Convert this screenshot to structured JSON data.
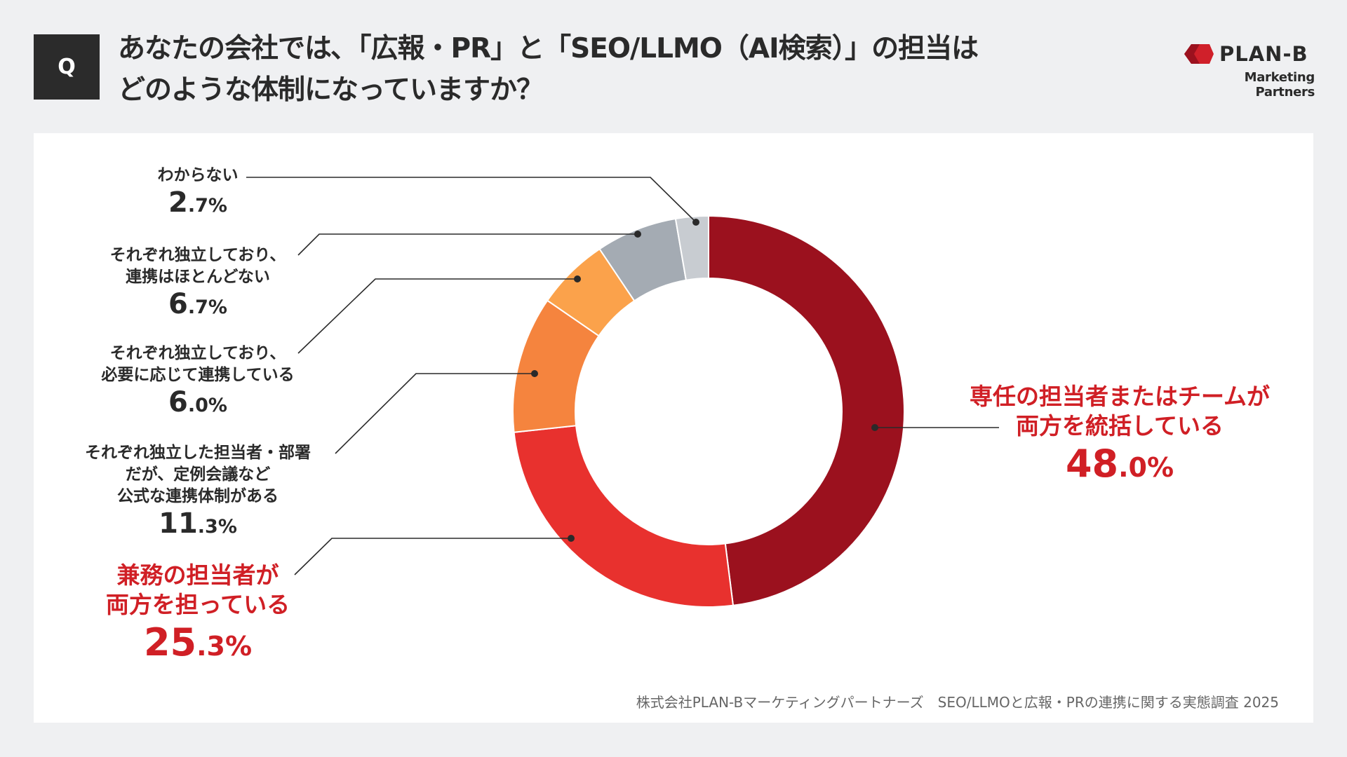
{
  "header": {
    "q_badge": "Q",
    "title_line1": "あなたの会社では､「広報・PR」と「SEO/LLMO（AI検索）」の担当は",
    "title_line2": "どのような体制になっていますか？"
  },
  "logo": {
    "name": "PLAN-B",
    "tagline": "Marketing Partners",
    "color": "#d0202a"
  },
  "chart_data": {
    "type": "pie",
    "donut": true,
    "direction": "clockwise from top",
    "unit": "%",
    "slices": [
      {
        "label": "専任の担当者またはチームが両方を統括している",
        "label_lines": [
          "専任の担当者またはチームが",
          "両方を統括している"
        ],
        "value": 48.0,
        "int": "48",
        "dec": ".0%",
        "color": "#9b111e",
        "highlight": true
      },
      {
        "label": "兼務の担当者が両方を担っている",
        "label_lines": [
          "兼務の担当者が",
          "両方を担っている"
        ],
        "value": 25.3,
        "int": "25",
        "dec": ".3%",
        "color": "#e8312e",
        "highlight": true
      },
      {
        "label": "それぞれ独立した担当者・部署だが、定例会議など公式な連携体制がある",
        "label_lines": [
          "それぞれ独立した担当者・部署",
          "だが、定例会議など",
          "公式な連携体制がある"
        ],
        "value": 11.3,
        "int": "11",
        "dec": ".3%",
        "color": "#f5843e",
        "highlight": false
      },
      {
        "label": "それぞれ独立しており、必要に応じて連携している",
        "label_lines": [
          "それぞれ独立しており、",
          "必要に応じて連携している"
        ],
        "value": 6.0,
        "int": "6",
        "dec": ".0%",
        "color": "#fba24b",
        "highlight": false
      },
      {
        "label": "それぞれ独立しており、連携はほとんどない",
        "label_lines": [
          "それぞれ独立しており、",
          "連携はほとんどない"
        ],
        "value": 6.7,
        "int": "6",
        "dec": ".7%",
        "color": "#a4abb3",
        "highlight": false
      },
      {
        "label": "わからない",
        "label_lines": [
          "わからない"
        ],
        "value": 2.7,
        "int": "2",
        "dec": ".7%",
        "color": "#c8ccd1",
        "highlight": false
      }
    ]
  },
  "footer": {
    "source": "株式会社PLAN-Bマーケティングパートナーズ　SEO/LLMOと広報・PRの連携に関する実態調査 2025"
  }
}
